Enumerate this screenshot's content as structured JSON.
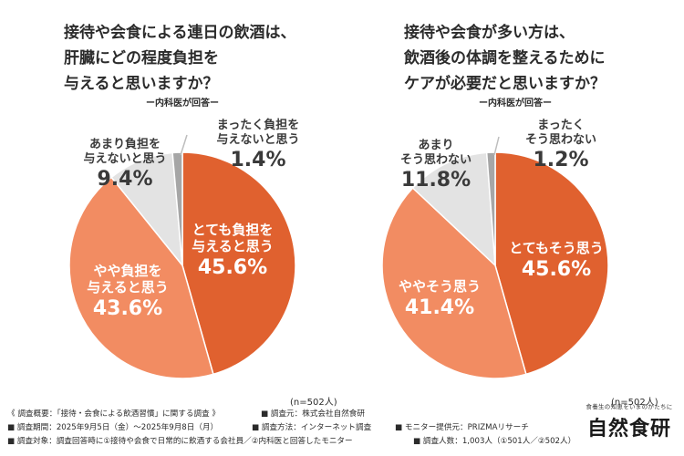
{
  "charts": [
    {
      "title_lines": [
        "接待や会食による連日の飲酒は、",
        "肝臓にどの程度負担を",
        "与えると思いますか？"
      ],
      "source_note": "ー内科医が回答ー",
      "sample": "(n=502人)",
      "labels": [
        {
          "name": [
            "とても負担を",
            "与えると思う"
          ],
          "pct": "45.6%"
        },
        {
          "name": [
            "やや負担を",
            "与えると思う"
          ],
          "pct": "43.6%"
        },
        {
          "name": [
            "あまり負担を",
            "与えないと思う"
          ],
          "pct": "9.4%"
        },
        {
          "name": [
            "まったく負担を",
            "与えないと思う"
          ],
          "pct": "1.4%"
        }
      ]
    },
    {
      "title_lines": [
        "接待や会食が多い方は、",
        "飲酒後の体調を整えるために",
        "ケアが必要だと思いますか？"
      ],
      "source_note": "ー内科医が回答ー",
      "sample": "(n=502人)",
      "labels": [
        {
          "name": [
            "とてもそう思う"
          ],
          "pct": "45.6%"
        },
        {
          "name": [
            "ややそう思う"
          ],
          "pct": "41.4%"
        },
        {
          "name": [
            "あまり",
            "そう思わない"
          ],
          "pct": "11.8%"
        },
        {
          "name": [
            "まったく",
            "そう思わない"
          ],
          "pct": "1.2%"
        }
      ]
    }
  ],
  "chart_data": [
    {
      "type": "pie",
      "title": "接待や会食による連日の飲酒は、肝臓にどの程度負担を与えると思いますか？",
      "categories": [
        "とても負担を与えると思う",
        "やや負担を与えると思う",
        "あまり負担を与えないと思う",
        "まったく負担を与えないと思う"
      ],
      "values": [
        45.6,
        43.6,
        9.4,
        1.4
      ],
      "colors": [
        "#e0612f",
        "#f28c62",
        "#e3e3e3",
        "#a6a6a6"
      ],
      "n": 502
    },
    {
      "type": "pie",
      "title": "接待や会食が多い方は、飲酒後の体調を整えるためにケアが必要だと思いますか？",
      "categories": [
        "とてもそう思う",
        "ややそう思う",
        "あまりそう思わない",
        "まったくそう思わない"
      ],
      "values": [
        45.6,
        41.4,
        11.8,
        1.2
      ],
      "colors": [
        "#e0612f",
        "#f28c62",
        "#e3e3e3",
        "#a6a6a6"
      ],
      "n": 502
    }
  ],
  "footer": {
    "summary": "《 調査概要：「接待・会食による飲酒習慣」に関する調査 》",
    "org": "■ 調査元：株式会社自然食研",
    "period": "■ 調査期間：2025年9月5日（金）〜2025年9月8日（月）",
    "method": "■ 調査方法：インターネット調査",
    "monitor": "■ モニター提供元：PRIZMAリサーチ",
    "target": "■ 調査対象：調査回答時に①接待や会食で日常的に飲酒する会社員／②内科医と回答したモニター",
    "count": "■ 調査人数：1,003人（①501人／②502人）"
  },
  "brand": {
    "tagline": "食養生の知恵をいまのかたちに",
    "name": "自然食研"
  }
}
